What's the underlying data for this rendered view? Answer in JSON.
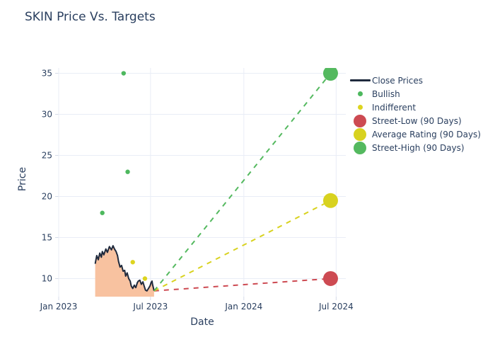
{
  "chart_data": {
    "type": "line",
    "title": "SKIN Price Vs. Targets",
    "xlabel": "Date",
    "ylabel": "Price",
    "xlim": [
      "2023-01-01",
      "2024-07-20"
    ],
    "ylim": [
      7.8,
      35.65
    ],
    "grid": true,
    "legend_position": "right",
    "x_ticks": [
      {
        "date": "2023-01-01",
        "label": "Jan 2023"
      },
      {
        "date": "2023-07-01",
        "label": "Jul 2023"
      },
      {
        "date": "2024-01-01",
        "label": "Jan 2024"
      },
      {
        "date": "2024-07-01",
        "label": "Jul 2024"
      }
    ],
    "y_ticks": [
      10,
      15,
      20,
      25,
      30,
      35
    ],
    "series": [
      {
        "name": "Close Prices",
        "type": "area_line",
        "swatch": "line",
        "color": "#1f2a3d",
        "fill_color": "#f8c2a0",
        "x": [
          "2023-03-14",
          "2023-03-17",
          "2023-03-20",
          "2023-03-23",
          "2023-03-26",
          "2023-03-28",
          "2023-03-31",
          "2023-04-04",
          "2023-04-07",
          "2023-04-11",
          "2023-04-15",
          "2023-04-18",
          "2023-04-21",
          "2023-04-24",
          "2023-04-27",
          "2023-04-29",
          "2023-05-02",
          "2023-05-05",
          "2023-05-08",
          "2023-05-11",
          "2023-05-13",
          "2023-05-16",
          "2023-05-19",
          "2023-05-22",
          "2023-05-24",
          "2023-05-27",
          "2023-05-30",
          "2023-06-02",
          "2023-06-05",
          "2023-06-07",
          "2023-06-10",
          "2023-06-13",
          "2023-06-16",
          "2023-06-19",
          "2023-06-21",
          "2023-06-24",
          "2023-06-27",
          "2023-06-30",
          "2023-07-02",
          "2023-07-04",
          "2023-07-05",
          "2023-07-07",
          "2023-07-08"
        ],
        "y": [
          11.8,
          12.8,
          12.3,
          13.1,
          12.6,
          13.3,
          12.9,
          13.6,
          13.2,
          13.9,
          13.5,
          14.0,
          13.6,
          13.3,
          12.8,
          12.1,
          11.4,
          11.6,
          10.9,
          11.0,
          10.3,
          10.7,
          10.0,
          9.7,
          9.1,
          8.8,
          9.2,
          8.9,
          9.5,
          9.7,
          9.8,
          9.3,
          9.6,
          9.0,
          8.6,
          8.5,
          8.8,
          9.1,
          9.5,
          9.7,
          9.3,
          8.8,
          8.5
        ]
      },
      {
        "name": "Bullish",
        "type": "scatter",
        "swatch": "small-dot",
        "color": "#4db85e",
        "x": [
          "2023-03-28",
          "2023-05-09",
          "2023-05-17"
        ],
        "y": [
          18,
          35,
          23
        ]
      },
      {
        "name": "Indifferent",
        "type": "scatter",
        "swatch": "small-dot",
        "color": "#ddd41f",
        "x": [
          "2023-05-27",
          "2023-06-20"
        ],
        "y": [
          12,
          10
        ]
      },
      {
        "name": "Street-Low (90 Days)",
        "type": "target_line",
        "swatch": "big-dot",
        "color": "#cd4a52",
        "x": [
          "2023-07-08",
          "2024-06-20"
        ],
        "y": [
          8.5,
          10
        ]
      },
      {
        "name": "Average Rating (90 Days)",
        "type": "target_line",
        "swatch": "big-dot",
        "color": "#d8d21f",
        "x": [
          "2023-07-08",
          "2024-06-20"
        ],
        "y": [
          8.5,
          19.5
        ]
      },
      {
        "name": "Street-High (90 Days)",
        "type": "target_line",
        "swatch": "big-dot",
        "color": "#54b95f",
        "x": [
          "2023-07-08",
          "2024-06-20"
        ],
        "y": [
          8.5,
          35
        ]
      }
    ]
  },
  "style": {
    "background": "#ffffff",
    "grid_color": "#e9edf6",
    "tick_color": "#d5dbe8",
    "text_color": "#2a3f5f"
  }
}
